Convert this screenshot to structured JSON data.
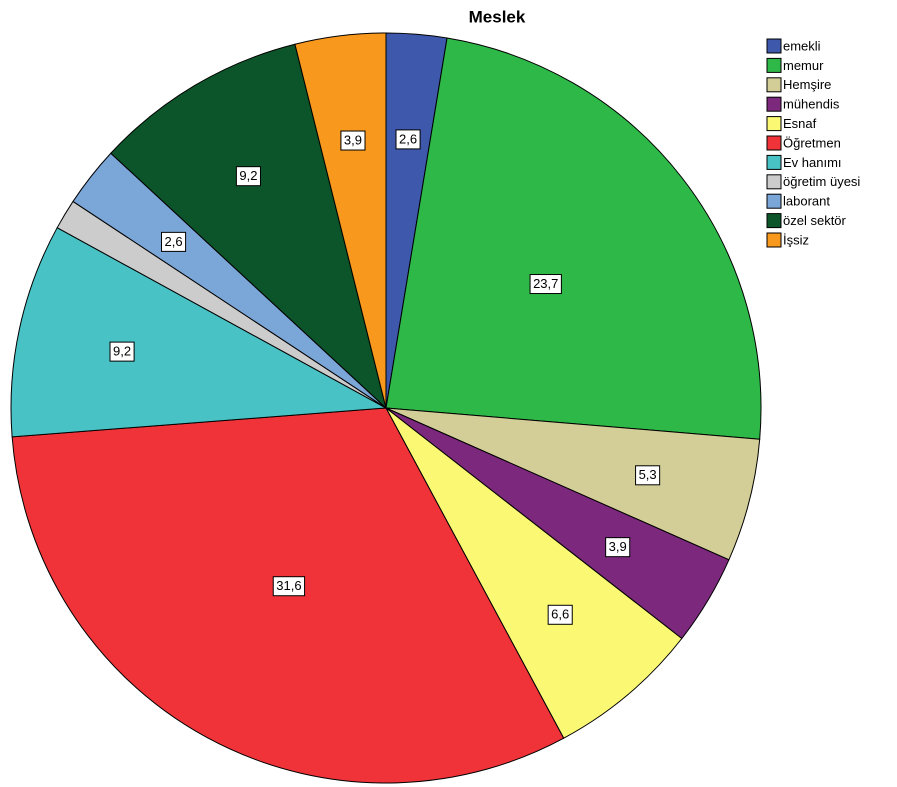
{
  "chart_data": {
    "type": "pie",
    "title": "Meslek",
    "categories": [
      "emekli",
      "memur",
      "Hemşire",
      "mühendis",
      "Esnaf",
      "Öğretmen",
      "Ev hanımı",
      "öğretim üyesi",
      "laborant",
      "özel sektör",
      "İşsiz"
    ],
    "values": [
      2.6,
      23.7,
      5.3,
      3.9,
      6.6,
      31.6,
      9.2,
      1.3,
      2.6,
      9.2,
      3.9
    ],
    "value_labels": [
      "2,6",
      "23,7",
      "5,3",
      "3,9",
      "6,6",
      "31,6",
      "9,2",
      null,
      "2,6",
      "9,2",
      "3,9"
    ],
    "colors": [
      "#3e58ac",
      "#2eb848",
      "#d3ce97",
      "#7b287d",
      "#fbf873",
      "#ef3338",
      "#48c2c5",
      "#cccccc",
      "#7ba6d8",
      "#0c5429",
      "#f8981d"
    ]
  }
}
